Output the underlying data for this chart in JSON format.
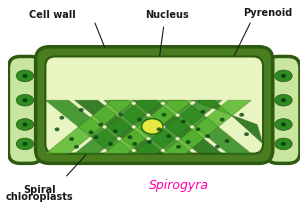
{
  "bg_color": "#ffffff",
  "cell_outer_bg": "#c8e6a0",
  "cell_wall_color": "#4a7c20",
  "cell_wall_dark": "#2d5a10",
  "cell_inner_bg": "#e8f5c0",
  "chloroplast_dark": "#1a6b10",
  "chloroplast_mid": "#2e8b20",
  "chloroplast_light": "#5ab830",
  "pyrenoid_color": "#e8e840",
  "nucleus_dot_color": "#0a4010",
  "label_color": "#1a1a1a",
  "spirogyra_color": "#ff00aa",
  "annotation_line_color": "#1a1a1a",
  "labels": {
    "cell_wall": "Cell wall",
    "nucleus": "Nucleus",
    "pyrenoid": "Pyrenoid",
    "spiral": "Spiral",
    "chloroplasts": "chloroplasts",
    "spirogyra": "Spirogyra"
  }
}
